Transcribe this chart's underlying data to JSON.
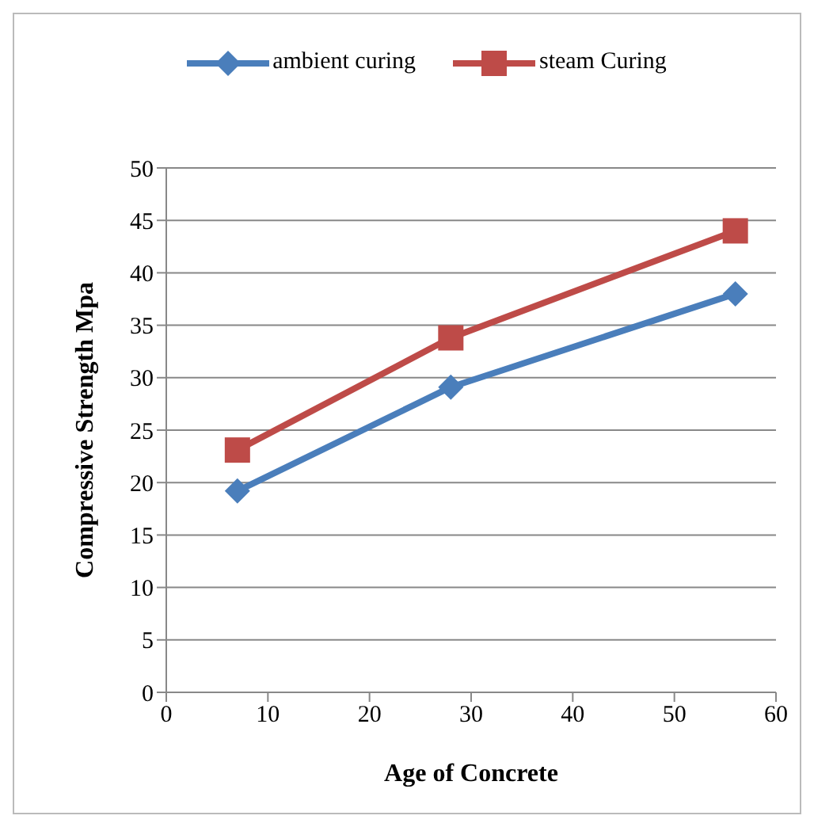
{
  "chart_data": {
    "type": "line",
    "xlabel": "Age of Concrete",
    "ylabel": "Compressive Strength Mpa",
    "x": [
      7,
      28,
      56
    ],
    "series": [
      {
        "name": "ambient curing",
        "color": "#4a7ebb",
        "values": [
          19.2,
          29.1,
          38
        ],
        "marker": "diamond"
      },
      {
        "name": "steam Curing",
        "color": "#be4b48",
        "values": [
          23.1,
          33.8,
          44
        ],
        "marker": "square"
      }
    ],
    "xlim": [
      0,
      60
    ],
    "xticks": [
      0,
      10,
      20,
      30,
      40,
      50,
      60
    ],
    "ylim": [
      0,
      50
    ],
    "yticks": [
      0,
      5,
      10,
      15,
      20,
      25,
      30,
      35,
      40,
      45,
      50
    ],
    "grid": "y",
    "legend": "top",
    "line_style": "solid"
  }
}
